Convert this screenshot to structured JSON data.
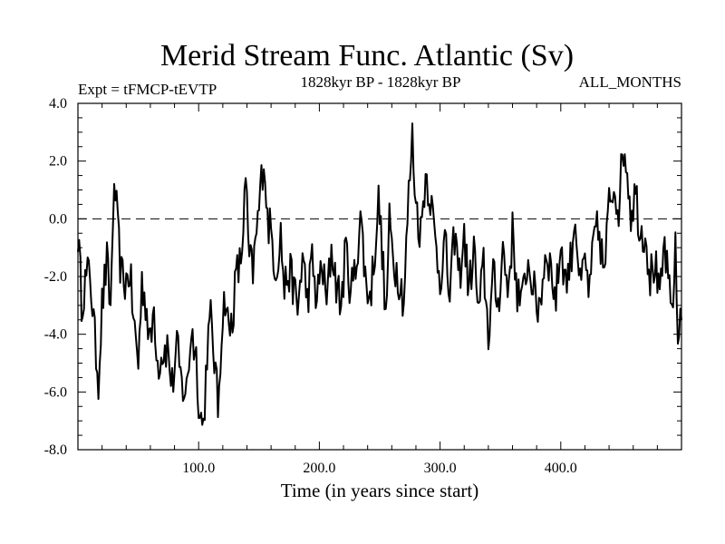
{
  "chart_data": {
    "type": "line",
    "title": "Merid Stream Func. Atlantic (Sv)",
    "subtitle_left": "Expt = tFMCP-tEVTP",
    "subtitle_center": "1828kyr BP - 1828kyr BP",
    "subtitle_right": "ALL_MONTHS",
    "xlabel": "Time (in years since start)",
    "ylabel": "",
    "xlim": [
      0,
      500
    ],
    "ylim": [
      -8,
      4
    ],
    "xticks": [
      100,
      200,
      300,
      400
    ],
    "xtick_labels": [
      "100.0",
      "200.0",
      "300.0",
      "400.0"
    ],
    "yticks": [
      -8,
      -6,
      -4,
      -2,
      0,
      2,
      4
    ],
    "ytick_labels": [
      "-8.0",
      "-6.0",
      "-4.0",
      "-2.0",
      "0.0",
      "2.0",
      "4.0"
    ],
    "reference_line": {
      "y": 0,
      "style": "dashed"
    },
    "anchors": [
      [
        0,
        -0.5
      ],
      [
        3,
        -2.8
      ],
      [
        6,
        -2.2
      ],
      [
        10,
        -1.8
      ],
      [
        14,
        -4.2
      ],
      [
        17,
        -5.5
      ],
      [
        20,
        -3.0
      ],
      [
        24,
        -1.5
      ],
      [
        27,
        -3.2
      ],
      [
        29,
        0.2
      ],
      [
        31,
        0.9
      ],
      [
        33,
        -0.5
      ],
      [
        36,
        -2.0
      ],
      [
        40,
        -2.2
      ],
      [
        43,
        -1.8
      ],
      [
        46,
        -3.5
      ],
      [
        50,
        -5.0
      ],
      [
        53,
        -2.2
      ],
      [
        56,
        -2.8
      ],
      [
        60,
        -4.5
      ],
      [
        63,
        -3.0
      ],
      [
        66,
        -5.0
      ],
      [
        70,
        -4.6
      ],
      [
        74,
        -4.4
      ],
      [
        78,
        -5.8
      ],
      [
        82,
        -4.5
      ],
      [
        86,
        -5.8
      ],
      [
        90,
        -6.0
      ],
      [
        94,
        -3.8
      ],
      [
        98,
        -4.8
      ],
      [
        101,
        -6.8
      ],
      [
        104,
        -7.2
      ],
      [
        107,
        -4.5
      ],
      [
        110,
        -3.5
      ],
      [
        113,
        -4.8
      ],
      [
        116,
        -6.6
      ],
      [
        119,
        -3.8
      ],
      [
        122,
        -2.6
      ],
      [
        125,
        -4.0
      ],
      [
        128,
        -3.4
      ],
      [
        131,
        -2.0
      ],
      [
        135,
        -1.5
      ],
      [
        139,
        1.2
      ],
      [
        142,
        -1.5
      ],
      [
        145,
        -1.8
      ],
      [
        148,
        -0.5
      ],
      [
        151,
        0.8
      ],
      [
        154,
        2.3
      ],
      [
        157,
        0.0
      ],
      [
        160,
        -0.5
      ],
      [
        164,
        -1.8
      ],
      [
        168,
        -0.5
      ],
      [
        171,
        -2.5
      ],
      [
        174,
        -1.8
      ],
      [
        178,
        -2.2
      ],
      [
        182,
        -3.2
      ],
      [
        186,
        -1.3
      ],
      [
        190,
        -2.8
      ],
      [
        194,
        -1.5
      ],
      [
        198,
        -2.9
      ],
      [
        202,
        -1.5
      ],
      [
        206,
        -3.0
      ],
      [
        210,
        -1.0
      ],
      [
        214,
        -2.2
      ],
      [
        218,
        -3.0
      ],
      [
        222,
        -1.0
      ],
      [
        226,
        -2.5
      ],
      [
        230,
        -1.8
      ],
      [
        234,
        0.2
      ],
      [
        238,
        -2.0
      ],
      [
        242,
        -2.8
      ],
      [
        246,
        -1.0
      ],
      [
        249,
        0.6
      ],
      [
        252,
        -1.0
      ],
      [
        255,
        -3.6
      ],
      [
        258,
        -0.2
      ],
      [
        262,
        -1.5
      ],
      [
        266,
        -2.0
      ],
      [
        270,
        -2.8
      ],
      [
        274,
        0.8
      ],
      [
        277,
        2.8
      ],
      [
        280,
        0.5
      ],
      [
        284,
        -0.5
      ],
      [
        288,
        1.6
      ],
      [
        292,
        0.8
      ],
      [
        296,
        -0.8
      ],
      [
        300,
        -2.0
      ],
      [
        304,
        -0.8
      ],
      [
        308,
        -2.8
      ],
      [
        312,
        -0.5
      ],
      [
        316,
        -2.0
      ],
      [
        320,
        -0.6
      ],
      [
        324,
        -2.5
      ],
      [
        328,
        -1.0
      ],
      [
        332,
        -3.4
      ],
      [
        336,
        -1.6
      ],
      [
        340,
        -4.0
      ],
      [
        344,
        -2.0
      ],
      [
        348,
        -3.0
      ],
      [
        352,
        -1.0
      ],
      [
        356,
        -2.5
      ],
      [
        360,
        -0.5
      ],
      [
        364,
        -2.5
      ],
      [
        368,
        -3.0
      ],
      [
        372,
        -1.5
      ],
      [
        376,
        -2.0
      ],
      [
        380,
        -3.2
      ],
      [
        384,
        -2.5
      ],
      [
        388,
        -1.0
      ],
      [
        392,
        -1.8
      ],
      [
        396,
        -2.8
      ],
      [
        400,
        -0.8
      ],
      [
        404,
        -2.2
      ],
      [
        408,
        -1.5
      ],
      [
        412,
        0.2
      ],
      [
        416,
        -2.5
      ],
      [
        420,
        -1.5
      ],
      [
        424,
        -2.6
      ],
      [
        428,
        -0.5
      ],
      [
        432,
        -0.5
      ],
      [
        436,
        -2.0
      ],
      [
        440,
        0.5
      ],
      [
        444,
        1.2
      ],
      [
        448,
        0.5
      ],
      [
        452,
        2.5
      ],
      [
        455,
        1.8
      ],
      [
        458,
        0.2
      ],
      [
        462,
        1.0
      ],
      [
        466,
        -0.5
      ],
      [
        470,
        -0.4
      ],
      [
        474,
        -2.0
      ],
      [
        478,
        -1.5
      ],
      [
        482,
        -3.0
      ],
      [
        486,
        -0.8
      ],
      [
        489,
        -2.4
      ],
      [
        492,
        -3.2
      ],
      [
        495,
        -1.2
      ],
      [
        497,
        -4.3
      ],
      [
        500,
        -2.8
      ]
    ]
  }
}
